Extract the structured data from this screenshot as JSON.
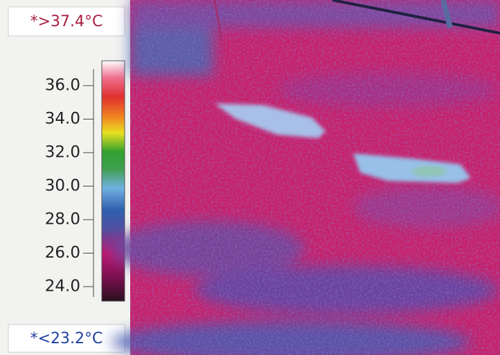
{
  "scale": {
    "max_label": "*>37.4°C",
    "min_label": "*<23.2°C",
    "ticks": [
      "36.0",
      "34.0",
      "32.0",
      "30.0",
      "28.0",
      "26.0",
      "24.0"
    ]
  }
}
